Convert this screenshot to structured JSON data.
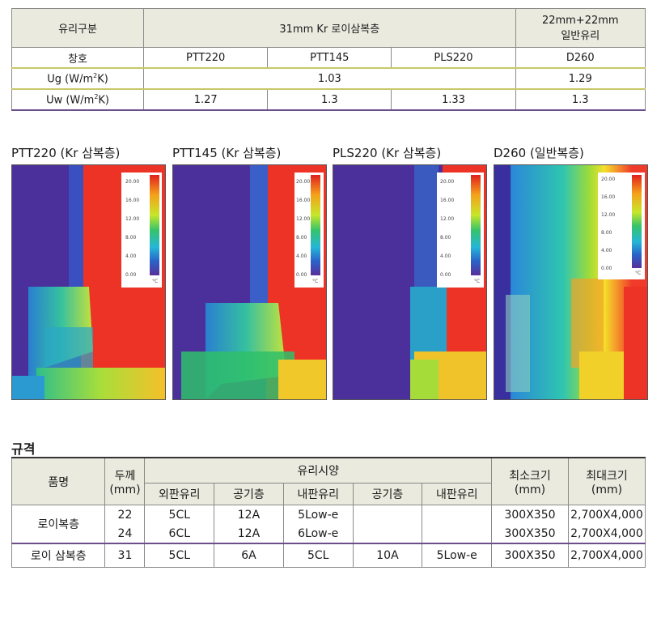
{
  "top_table": {
    "glass_type_label": "유리구분",
    "group_kr": "31mm Kr 로이삼복층",
    "group_normal_line1": "22mm+22mm",
    "group_normal_line2": "일반유리",
    "window_label": "창호",
    "models": [
      "PTT220",
      "PTT145",
      "PLS220",
      "D260"
    ],
    "ug_label": "Ug (W/m²K)",
    "ug_kr": "1.03",
    "ug_normal": "1.29",
    "uw_label": "Uw (W/m²K)",
    "uw_values": [
      "1.27",
      "1.3",
      "1.33",
      "1.3"
    ]
  },
  "thermal_images": [
    {
      "caption": "PTT220 (Kr 삼복층)",
      "scale": [
        "20.00",
        "16.00",
        "12.00",
        "8.00",
        "4.00",
        "0.00"
      ],
      "unit": "°C"
    },
    {
      "caption": "PTT145 (Kr 삼복층)",
      "scale": [
        "20.00",
        "16.00",
        "12.00",
        "8.00",
        "4.00",
        "0.00"
      ],
      "unit": "°C"
    },
    {
      "caption": "PLS220 (Kr 삼복층)",
      "scale": [
        "20.00",
        "16.00",
        "12.00",
        "8.00",
        "4.00",
        "0.00"
      ],
      "unit": "°C"
    },
    {
      "caption": "D260 (일반복층)",
      "scale": [
        "20.00",
        "16.00",
        "12.00",
        "8.00",
        "4.00",
        "0.00"
      ],
      "unit": "°C"
    }
  ],
  "spec": {
    "title": "규격",
    "headers": {
      "product": "품명",
      "thickness": "두께",
      "thickness_unit": "(mm)",
      "glass_spec": "유리시양",
      "outer_glass": "외판유리",
      "air_layer": "공기층",
      "inner_glass": "내판유리",
      "air_layer2": "공기층",
      "inner_glass2": "내판유리",
      "min_size": "최소크기",
      "min_unit": "(mm)",
      "max_size": "최대크기",
      "max_unit": "(mm)"
    },
    "rows": [
      {
        "name": "로이복층",
        "thickness": "22",
        "outer": "5CL",
        "air": "12A",
        "inner": "5Low-e",
        "air2": "",
        "inner2": "",
        "min": "300X350",
        "max": "2,700X4,000"
      },
      {
        "name": "",
        "thickness": "24",
        "outer": "6CL",
        "air": "12A",
        "inner": "6Low-e",
        "air2": "",
        "inner2": "",
        "min": "300X350",
        "max": "2,700X4,000"
      },
      {
        "name": "로이 삼복층",
        "thickness": "31",
        "outer": "5CL",
        "air": "6A",
        "inner": "5CL",
        "air2": "10A",
        "inner2": "5Low-e",
        "min": "300X350",
        "max": "2,700X4,000"
      }
    ]
  }
}
